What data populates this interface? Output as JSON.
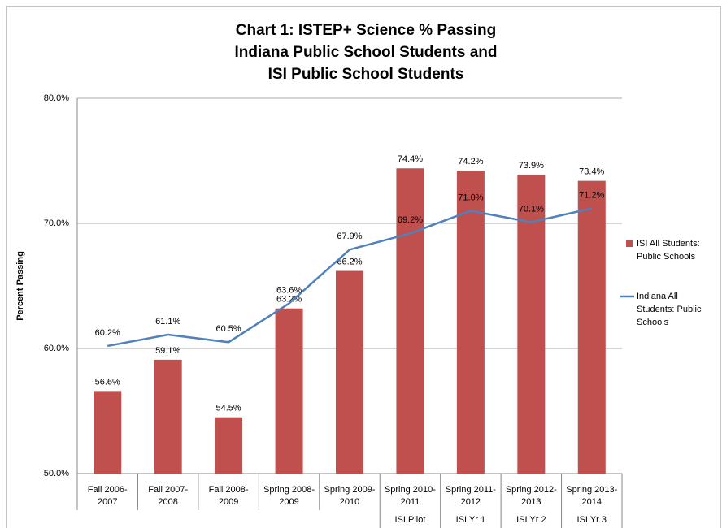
{
  "chart_data": {
    "type": "bar_line",
    "title": [
      "Chart 1: ISTEP+ Science % Passing",
      "Indiana Public School Students and",
      "ISI Public School Students"
    ],
    "y_label": "Percent Passing",
    "categories": [
      [
        "Fall 2006-",
        "2007"
      ],
      [
        "Fall 2007-",
        "2008"
      ],
      [
        "Fall 2008-",
        "2009"
      ],
      [
        "Spring 2008-",
        "2009"
      ],
      [
        "Spring 2009-",
        "2010"
      ],
      [
        "Spring 2010-",
        "2011"
      ],
      [
        "Spring 2011-",
        "2012"
      ],
      [
        "Spring 2012-",
        "2013"
      ],
      [
        "Spring 2013-",
        "2014"
      ]
    ],
    "category_groups": [
      null,
      null,
      null,
      null,
      null,
      "ISI Pilot",
      "ISI Yr 1",
      "ISI Yr 2",
      "ISI Yr 3"
    ],
    "series": [
      {
        "name": "ISI All Students: Public Schools",
        "type": "bar",
        "color": "#c0504d",
        "values": [
          56.6,
          59.1,
          54.5,
          63.2,
          66.2,
          74.4,
          74.2,
          73.9,
          73.4
        ],
        "value_labels": [
          "56.6%",
          "59.1%",
          "54.5%",
          "63.2%",
          "66.2%",
          "74.4%",
          "74.2%",
          "73.9%",
          "73.4%"
        ]
      },
      {
        "name": "Indiana All Students: Public Schools",
        "type": "line",
        "color": "#4f81bd",
        "values": [
          60.2,
          61.1,
          60.5,
          63.6,
          67.9,
          69.2,
          71.0,
          70.1,
          71.2
        ],
        "value_labels": [
          "60.2%",
          "61.1%",
          "60.5%",
          "63.6%",
          "67.9%",
          "69.2%",
          "71.0%",
          "70.1%",
          "71.2%"
        ]
      }
    ],
    "ylim": [
      50,
      80
    ],
    "yticks": [
      {
        "value": 50,
        "label": "50.0%"
      },
      {
        "value": 60,
        "label": "60.0%"
      },
      {
        "value": 70,
        "label": "70.0%"
      },
      {
        "value": 80,
        "label": "80.0%"
      }
    ],
    "grid": true,
    "legend": "right"
  }
}
